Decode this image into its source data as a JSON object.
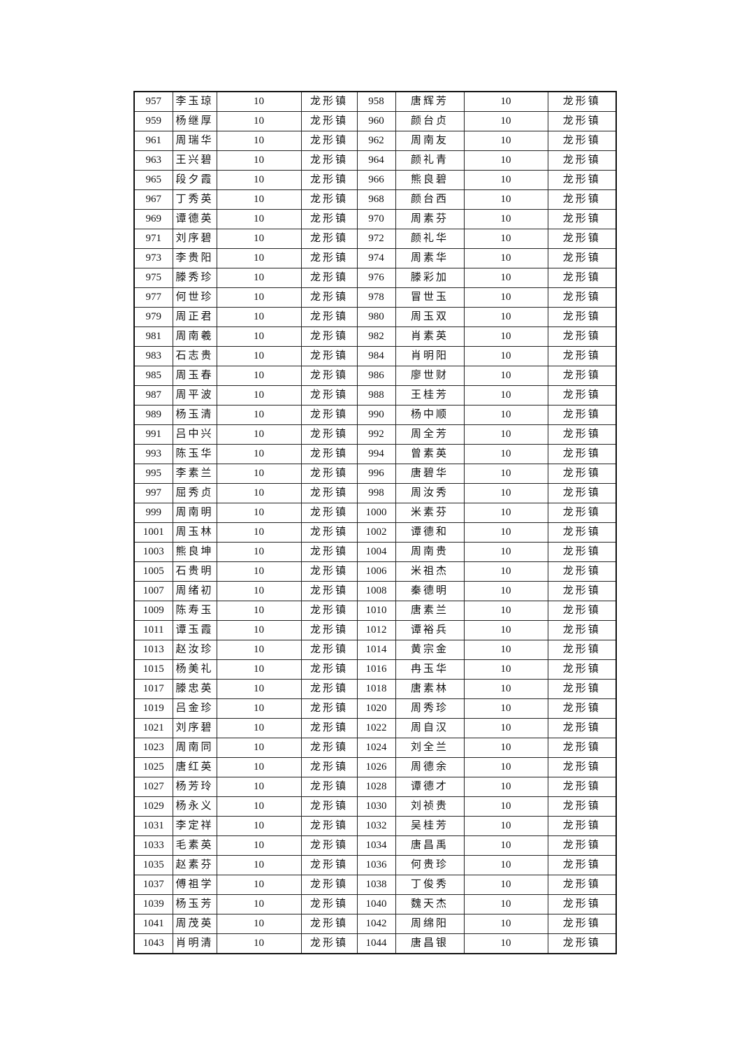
{
  "table": {
    "rows": [
      [
        "957",
        "李玉琼",
        "10",
        "龙形镇",
        "958",
        "唐辉芳",
        "10",
        "龙形镇"
      ],
      [
        "959",
        "杨继厚",
        "10",
        "龙形镇",
        "960",
        "颜台贞",
        "10",
        "龙形镇"
      ],
      [
        "961",
        "周瑞华",
        "10",
        "龙形镇",
        "962",
        "周南友",
        "10",
        "龙形镇"
      ],
      [
        "963",
        "王兴碧",
        "10",
        "龙形镇",
        "964",
        "颜礼青",
        "10",
        "龙形镇"
      ],
      [
        "965",
        "段夕霞",
        "10",
        "龙形镇",
        "966",
        "熊良碧",
        "10",
        "龙形镇"
      ],
      [
        "967",
        "丁秀英",
        "10",
        "龙形镇",
        "968",
        "颜台西",
        "10",
        "龙形镇"
      ],
      [
        "969",
        "谭德英",
        "10",
        "龙形镇",
        "970",
        "周素芬",
        "10",
        "龙形镇"
      ],
      [
        "971",
        "刘序碧",
        "10",
        "龙形镇",
        "972",
        "颜礼华",
        "10",
        "龙形镇"
      ],
      [
        "973",
        "李贵阳",
        "10",
        "龙形镇",
        "974",
        "周素华",
        "10",
        "龙形镇"
      ],
      [
        "975",
        "滕秀珍",
        "10",
        "龙形镇",
        "976",
        "滕彩加",
        "10",
        "龙形镇"
      ],
      [
        "977",
        "何世珍",
        "10",
        "龙形镇",
        "978",
        "冒世玉",
        "10",
        "龙形镇"
      ],
      [
        "979",
        "周正君",
        "10",
        "龙形镇",
        "980",
        "周玉双",
        "10",
        "龙形镇"
      ],
      [
        "981",
        "周南羲",
        "10",
        "龙形镇",
        "982",
        "肖素英",
        "10",
        "龙形镇"
      ],
      [
        "983",
        "石志贵",
        "10",
        "龙形镇",
        "984",
        "肖明阳",
        "10",
        "龙形镇"
      ],
      [
        "985",
        "周玉春",
        "10",
        "龙形镇",
        "986",
        "廖世财",
        "10",
        "龙形镇"
      ],
      [
        "987",
        "周平波",
        "10",
        "龙形镇",
        "988",
        "王桂芳",
        "10",
        "龙形镇"
      ],
      [
        "989",
        "杨玉清",
        "10",
        "龙形镇",
        "990",
        "杨中顺",
        "10",
        "龙形镇"
      ],
      [
        "991",
        "吕中兴",
        "10",
        "龙形镇",
        "992",
        "周全芳",
        "10",
        "龙形镇"
      ],
      [
        "993",
        "陈玉华",
        "10",
        "龙形镇",
        "994",
        "曾素英",
        "10",
        "龙形镇"
      ],
      [
        "995",
        "李素兰",
        "10",
        "龙形镇",
        "996",
        "唐碧华",
        "10",
        "龙形镇"
      ],
      [
        "997",
        "屈秀贞",
        "10",
        "龙形镇",
        "998",
        "周汝秀",
        "10",
        "龙形镇"
      ],
      [
        "999",
        "周南明",
        "10",
        "龙形镇",
        "1000",
        "米素芬",
        "10",
        "龙形镇"
      ],
      [
        "1001",
        "周玉林",
        "10",
        "龙形镇",
        "1002",
        "谭德和",
        "10",
        "龙形镇"
      ],
      [
        "1003",
        "熊良坤",
        "10",
        "龙形镇",
        "1004",
        "周南贵",
        "10",
        "龙形镇"
      ],
      [
        "1005",
        "石贵明",
        "10",
        "龙形镇",
        "1006",
        "米祖杰",
        "10",
        "龙形镇"
      ],
      [
        "1007",
        "周绪初",
        "10",
        "龙形镇",
        "1008",
        "秦德明",
        "10",
        "龙形镇"
      ],
      [
        "1009",
        "陈寿玉",
        "10",
        "龙形镇",
        "1010",
        "唐素兰",
        "10",
        "龙形镇"
      ],
      [
        "1011",
        "谭玉霞",
        "10",
        "龙形镇",
        "1012",
        "谭裕兵",
        "10",
        "龙形镇"
      ],
      [
        "1013",
        "赵汝珍",
        "10",
        "龙形镇",
        "1014",
        "黄宗金",
        "10",
        "龙形镇"
      ],
      [
        "1015",
        "杨美礼",
        "10",
        "龙形镇",
        "1016",
        "冉玉华",
        "10",
        "龙形镇"
      ],
      [
        "1017",
        "滕忠英",
        "10",
        "龙形镇",
        "1018",
        "唐素林",
        "10",
        "龙形镇"
      ],
      [
        "1019",
        "吕金珍",
        "10",
        "龙形镇",
        "1020",
        "周秀珍",
        "10",
        "龙形镇"
      ],
      [
        "1021",
        "刘序碧",
        "10",
        "龙形镇",
        "1022",
        "周自汉",
        "10",
        "龙形镇"
      ],
      [
        "1023",
        "周南同",
        "10",
        "龙形镇",
        "1024",
        "刘全兰",
        "10",
        "龙形镇"
      ],
      [
        "1025",
        "唐红英",
        "10",
        "龙形镇",
        "1026",
        "周德余",
        "10",
        "龙形镇"
      ],
      [
        "1027",
        "杨芳玲",
        "10",
        "龙形镇",
        "1028",
        "谭德才",
        "10",
        "龙形镇"
      ],
      [
        "1029",
        "杨永义",
        "10",
        "龙形镇",
        "1030",
        "刘祯贵",
        "10",
        "龙形镇"
      ],
      [
        "1031",
        "李定祥",
        "10",
        "龙形镇",
        "1032",
        "吴桂芳",
        "10",
        "龙形镇"
      ],
      [
        "1033",
        "毛素英",
        "10",
        "龙形镇",
        "1034",
        "唐昌禹",
        "10",
        "龙形镇"
      ],
      [
        "1035",
        "赵素芬",
        "10",
        "龙形镇",
        "1036",
        "何贵珍",
        "10",
        "龙形镇"
      ],
      [
        "1037",
        "傅祖学",
        "10",
        "龙形镇",
        "1038",
        "丁俊秀",
        "10",
        "龙形镇"
      ],
      [
        "1039",
        "杨玉芳",
        "10",
        "龙形镇",
        "1040",
        "魏天杰",
        "10",
        "龙形镇"
      ],
      [
        "1041",
        "周茂英",
        "10",
        "龙形镇",
        "1042",
        "周绵阳",
        "10",
        "龙形镇"
      ],
      [
        "1043",
        "肖明清",
        "10",
        "龙形镇",
        "1044",
        "唐昌银",
        "10",
        "龙形镇"
      ]
    ]
  }
}
